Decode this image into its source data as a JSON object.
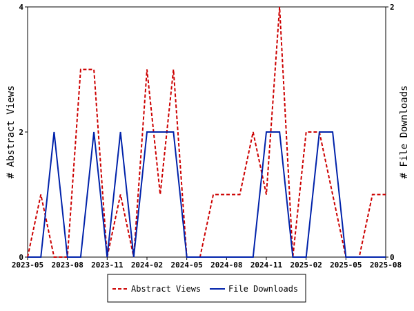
{
  "chart_data": {
    "type": "line",
    "x_ticks": [
      "2023-05",
      "2023-08",
      "2023-11",
      "2024-02",
      "2024-05",
      "2024-08",
      "2024-11",
      "2025-02",
      "2025-05",
      "2025-08"
    ],
    "left_axis": {
      "label": "# Abstract Views",
      "ylim": [
        0,
        4
      ],
      "ticks": [
        "0",
        "2",
        "4"
      ]
    },
    "right_axis": {
      "label": "# File Downloads",
      "ylim": [
        0,
        2
      ],
      "ticks": [
        "0",
        "2"
      ]
    },
    "grid": false,
    "legend_position": "bottom-center",
    "series": [
      {
        "name": "Abstract Views",
        "axis": "left",
        "color": "#cc0000",
        "style": "dashed",
        "x": [
          "2023-05",
          "2023-06",
          "2023-07",
          "2023-08",
          "2023-09",
          "2023-10",
          "2023-11",
          "2023-12",
          "2024-01",
          "2024-02",
          "2024-03",
          "2024-04",
          "2024-05",
          "2024-06",
          "2024-07",
          "2024-08",
          "2024-09",
          "2024-10",
          "2024-11",
          "2024-12",
          "2025-01",
          "2025-02",
          "2025-03",
          "2025-04",
          "2025-05",
          "2025-06",
          "2025-07",
          "2025-08"
        ],
        "values": [
          0,
          1,
          0,
          0,
          3,
          3,
          0,
          1,
          0,
          3,
          1,
          3,
          0,
          0,
          1,
          1,
          1,
          2,
          1,
          4,
          0,
          2,
          2,
          1,
          0,
          0,
          1,
          1
        ]
      },
      {
        "name": "File Downloads",
        "axis": "right",
        "color": "#0022aa",
        "style": "solid",
        "x": [
          "2023-05",
          "2023-06",
          "2023-07",
          "2023-08",
          "2023-09",
          "2023-10",
          "2023-11",
          "2023-12",
          "2024-01",
          "2024-02",
          "2024-03",
          "2024-04",
          "2024-05",
          "2024-06",
          "2024-07",
          "2024-08",
          "2024-09",
          "2024-10",
          "2024-11",
          "2024-12",
          "2025-01",
          "2025-02",
          "2025-03",
          "2025-04",
          "2025-05",
          "2025-06",
          "2025-07",
          "2025-08"
        ],
        "values": [
          0,
          0,
          1,
          0,
          0,
          1,
          0,
          1,
          0,
          1,
          1,
          1,
          0,
          0,
          0,
          0,
          0,
          0,
          1,
          1,
          0,
          0,
          1,
          1,
          0,
          0,
          0,
          0
        ]
      }
    ]
  }
}
